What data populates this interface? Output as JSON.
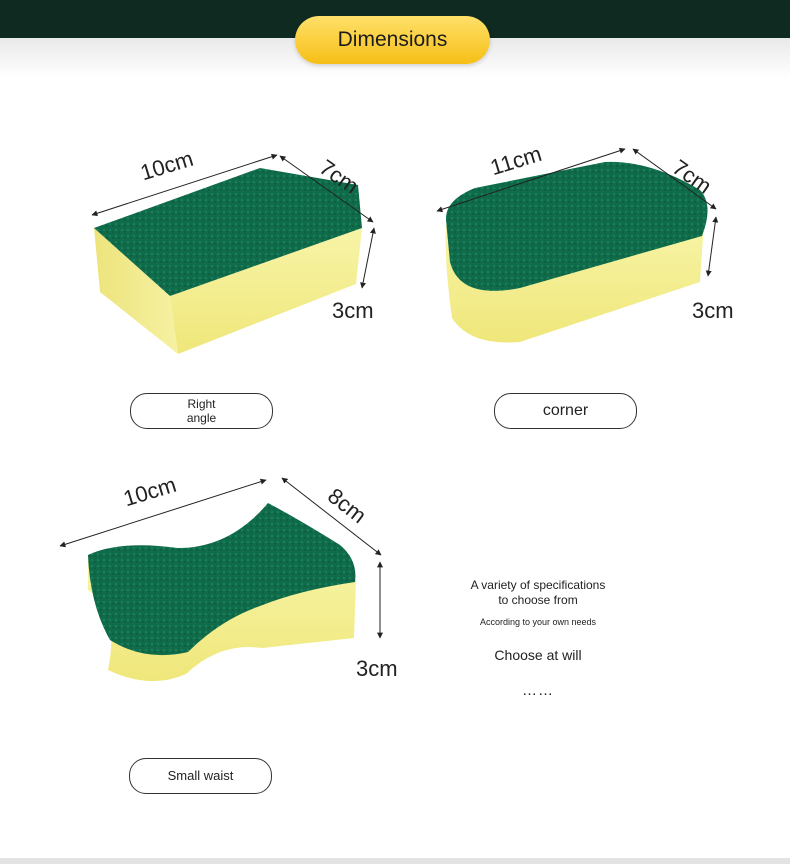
{
  "header": {
    "title": "Dimensions"
  },
  "sponges": [
    {
      "type_label": "Right angle",
      "length": "10cm",
      "width": "7cm",
      "height": "3cm"
    },
    {
      "type_label": "corner",
      "length": "11cm",
      "width": "7cm",
      "height": "3cm"
    },
    {
      "type_label": "Small waist",
      "length": "10cm",
      "width": "8cm",
      "height": "3cm"
    }
  ],
  "note": {
    "line1": "A variety of specifications",
    "line2": "to choose from",
    "line3": "According to your own needs",
    "line4": "Choose at will",
    "ellipsis": "……"
  },
  "colors": {
    "scrub": "#0f6b4a",
    "foam": "#f4ef92",
    "pill": "#f8c524",
    "header_bar": "#0f2a20"
  }
}
